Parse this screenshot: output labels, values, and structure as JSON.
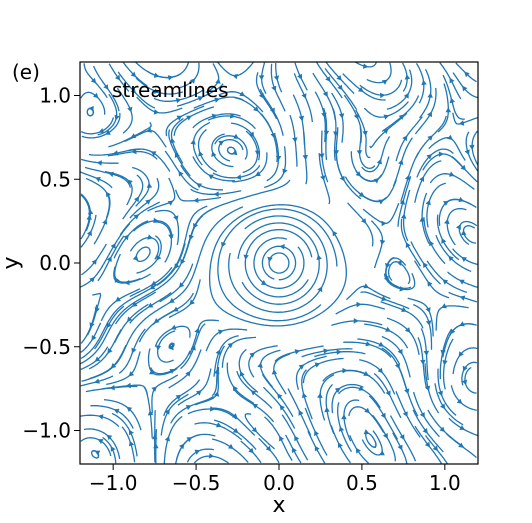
{
  "chart_data": {
    "type": "streamplot",
    "panel_label": "(e)",
    "annotation": "streamlines",
    "xlabel": "x",
    "ylabel": "y",
    "xlim": [
      -1.2,
      1.2
    ],
    "ylim": [
      -1.2,
      1.2
    ],
    "xticks": [
      -1.0,
      -0.5,
      0.0,
      0.5,
      1.0
    ],
    "yticks": [
      -1.0,
      -0.5,
      0.0,
      0.5,
      1.0
    ],
    "xtick_labels": [
      "−1.0",
      "−0.5",
      "0.0",
      "0.5",
      "1.0"
    ],
    "ytick_labels": [
      "−1.0",
      "−0.5",
      "0.0",
      "0.5",
      "1.0"
    ],
    "grid": false,
    "line_color": "#1f77b4",
    "vortex_center": [
      0.0,
      0.0
    ],
    "vortex_radius": 0.55,
    "rotation": "counterclockwise",
    "background": "turbulent"
  }
}
